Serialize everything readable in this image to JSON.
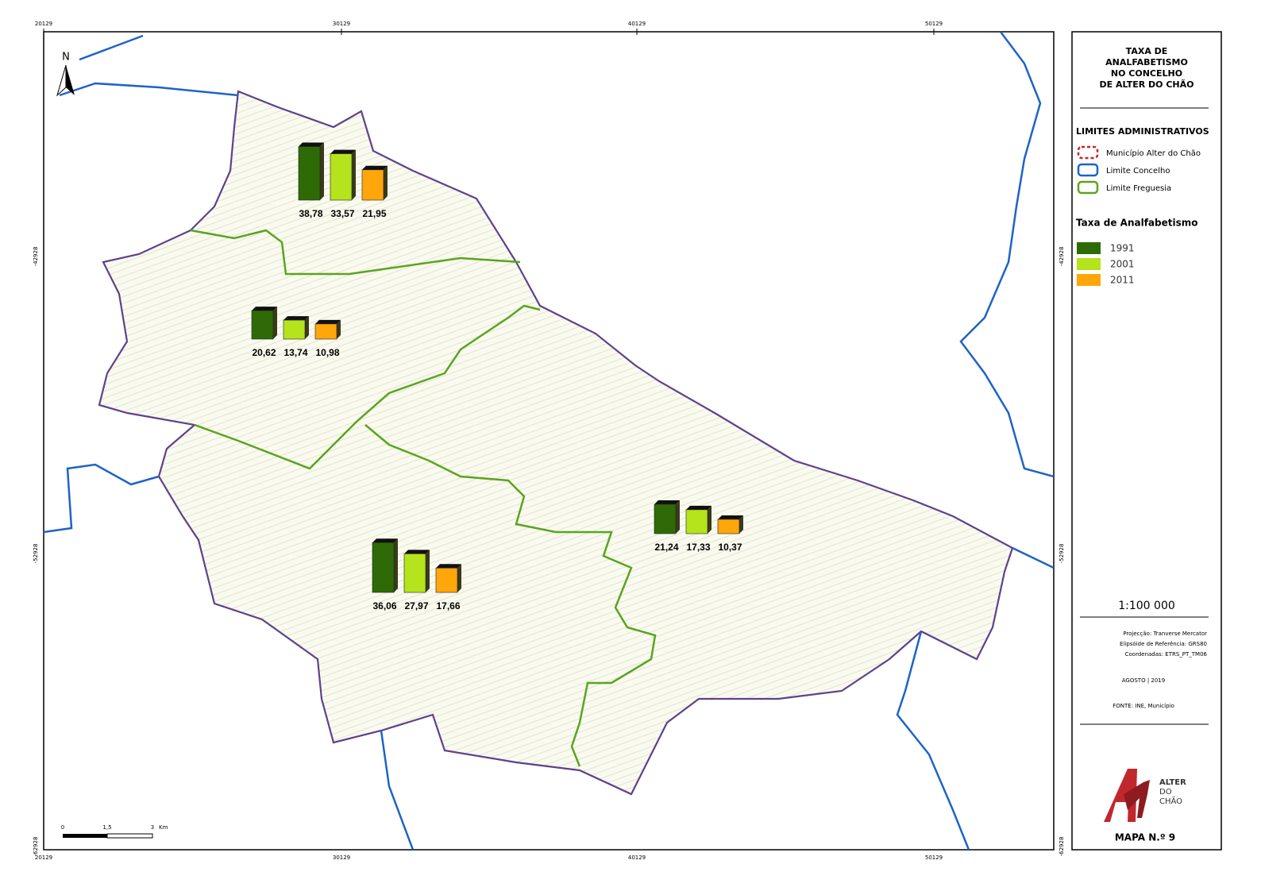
{
  "map": {
    "north": "N",
    "x_labels": [
      "20129",
      "30129",
      "40129",
      "50129"
    ],
    "y_labels": [
      "-42928",
      "-52928",
      "-62928"
    ],
    "scale_bar": [
      "0",
      "1,5",
      "3",
      "Km"
    ],
    "freguesias": [
      {
        "values": [
          38.78,
          33.57,
          21.95
        ],
        "value_labels": [
          "38,78",
          "33,57",
          "21,95"
        ]
      },
      {
        "values": [
          20.62,
          13.74,
          10.98
        ],
        "value_labels": [
          "20,62",
          "13,74",
          "10,98"
        ]
      },
      {
        "values": [
          21.24,
          17.33,
          10.37
        ],
        "value_labels": [
          "21,24",
          "17,33",
          "10,37"
        ]
      },
      {
        "values": [
          36.06,
          27.97,
          17.66
        ],
        "value_labels": [
          "36,06",
          "27,97",
          "17,66"
        ]
      }
    ]
  },
  "legend": {
    "title": [
      "TAXA DE",
      "ANALFABETISMO",
      "NO CONCELHO",
      "DE ALTER DO CHÃO"
    ],
    "admin_title": "LIMITES ADMINISTRATIVOS",
    "admin_items": [
      "Município Alter do Chão",
      "Limite Concelho",
      "Limite Freguesia"
    ],
    "rate_title": "Taxa de Analfabetismo",
    "series": [
      {
        "name": "1991",
        "color": "#2e6b07"
      },
      {
        "name": "2001",
        "color": "#b5e31c"
      },
      {
        "name": "2011",
        "color": "#ffa60a"
      }
    ],
    "scale": "1:100 000",
    "projection": [
      "Projecção: Tranverse Mercator",
      "Elipsóide de Referência: GRS80",
      "Coordenadas: ETRS_PT_TM06"
    ],
    "date": "AGOSTO | 2019",
    "source": "FONTE: INE, Município",
    "logo": [
      "ALTER",
      "DO",
      "CHÃO"
    ],
    "map_number": "MAPA N.º 9"
  }
}
